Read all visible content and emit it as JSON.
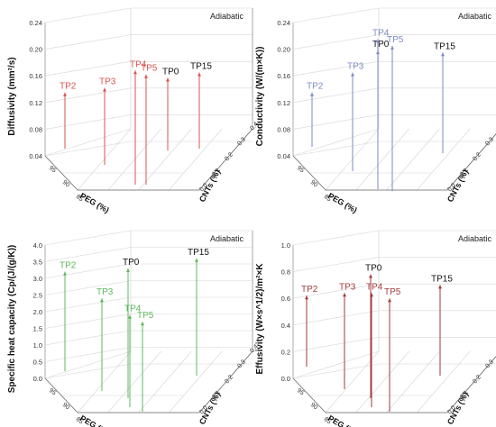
{
  "chart_data": [
    {
      "type": "3d-stem",
      "panel": "a",
      "condition": "Adiabatic",
      "ylabel": "Diffusivity (mm²/s)",
      "xlabel": "PEG (%)",
      "zlabel": "CNTs (%)",
      "zlim": [
        0.04,
        0.24
      ],
      "zticks": [
        "0.04",
        "0.08",
        "0.12",
        "0.16",
        "0.20",
        "0.24"
      ],
      "peg_ticks": [
        "95",
        "90",
        "85"
      ],
      "cnt_ticks": [
        "0.0",
        "0.1",
        "0.2",
        "0.3",
        "0.4"
      ],
      "color": "#d9534f",
      "series": [
        {
          "name": "TP0",
          "value": 0.157
        },
        {
          "name": "TP2",
          "value": 0.135
        },
        {
          "name": "TP3",
          "value": 0.142
        },
        {
          "name": "TP4",
          "value": 0.168
        },
        {
          "name": "TP5",
          "value": 0.162
        },
        {
          "name": "TP15",
          "value": 0.165
        }
      ]
    },
    {
      "type": "3d-stem",
      "panel": "b",
      "condition": "Adiabatic",
      "ylabel": "Conductivity (W/(m×K))",
      "xlabel": "PEG (%)",
      "zlabel": "CNTs (%)",
      "zlim": [
        0.04,
        0.24
      ],
      "zticks": [
        "0.04",
        "0.08",
        "0.12",
        "0.16",
        "0.20",
        "0.24"
      ],
      "peg_ticks": [
        "95",
        "90",
        "85"
      ],
      "cnt_ticks": [
        "0.0",
        "0.1",
        "0.2",
        "0.3",
        "0.4"
      ],
      "color": "#7b8bc4",
      "series": [
        {
          "name": "TP0",
          "value": 0.198
        },
        {
          "name": "TP2",
          "value": 0.135
        },
        {
          "name": "TP3",
          "value": 0.165
        },
        {
          "name": "TP4",
          "value": 0.215
        },
        {
          "name": "TP5",
          "value": 0.205
        },
        {
          "name": "TP15",
          "value": 0.195
        }
      ]
    },
    {
      "type": "3d-stem",
      "panel": "c",
      "condition": "Adiabatic",
      "ylabel": "Specific heat capacity (Cp/(J/(g/K))",
      "xlabel": "PEG (%)",
      "zlabel": "CNTs (%)",
      "zlim": [
        0.0,
        4.0
      ],
      "zticks": [
        "0.0",
        "0.5",
        "1.0",
        "1.5",
        "2.0",
        "2.5",
        "3.0",
        "3.5",
        "4.0"
      ],
      "peg_ticks": [
        "95",
        "90",
        "85"
      ],
      "cnt_ticks": [
        "0.0",
        "0.1",
        "0.2",
        "0.3",
        "0.4"
      ],
      "color": "#5cb85c",
      "series": [
        {
          "name": "TP0",
          "value": 3.3
        },
        {
          "name": "TP2",
          "value": 3.2
        },
        {
          "name": "TP3",
          "value": 2.4
        },
        {
          "name": "TP4",
          "value": 1.9
        },
        {
          "name": "TP5",
          "value": 1.7
        },
        {
          "name": "TP15",
          "value": 3.6
        }
      ]
    },
    {
      "type": "3d-stem",
      "panel": "d",
      "condition": "Adiabatic",
      "ylabel": "Effusivity (W×s^1/2)/m²×K",
      "xlabel": "PEG (%)",
      "zlabel": "CNTs (%)",
      "zlim": [
        0.0,
        1.0
      ],
      "zticks": [
        "0.0",
        "0.2",
        "0.4",
        "0.6",
        "0.8",
        "1.0"
      ],
      "peg_ticks": [
        "95",
        "90",
        "85"
      ],
      "cnt_ticks": [
        "0.0",
        "0.1",
        "0.2",
        "0.3",
        "0.4"
      ],
      "color": "#a33a3a",
      "series": [
        {
          "name": "TP0",
          "value": 0.78
        },
        {
          "name": "TP2",
          "value": 0.62
        },
        {
          "name": "TP3",
          "value": 0.64
        },
        {
          "name": "TP4",
          "value": 0.64
        },
        {
          "name": "TP5",
          "value": 0.6
        },
        {
          "name": "TP15",
          "value": 0.7
        }
      ]
    }
  ]
}
